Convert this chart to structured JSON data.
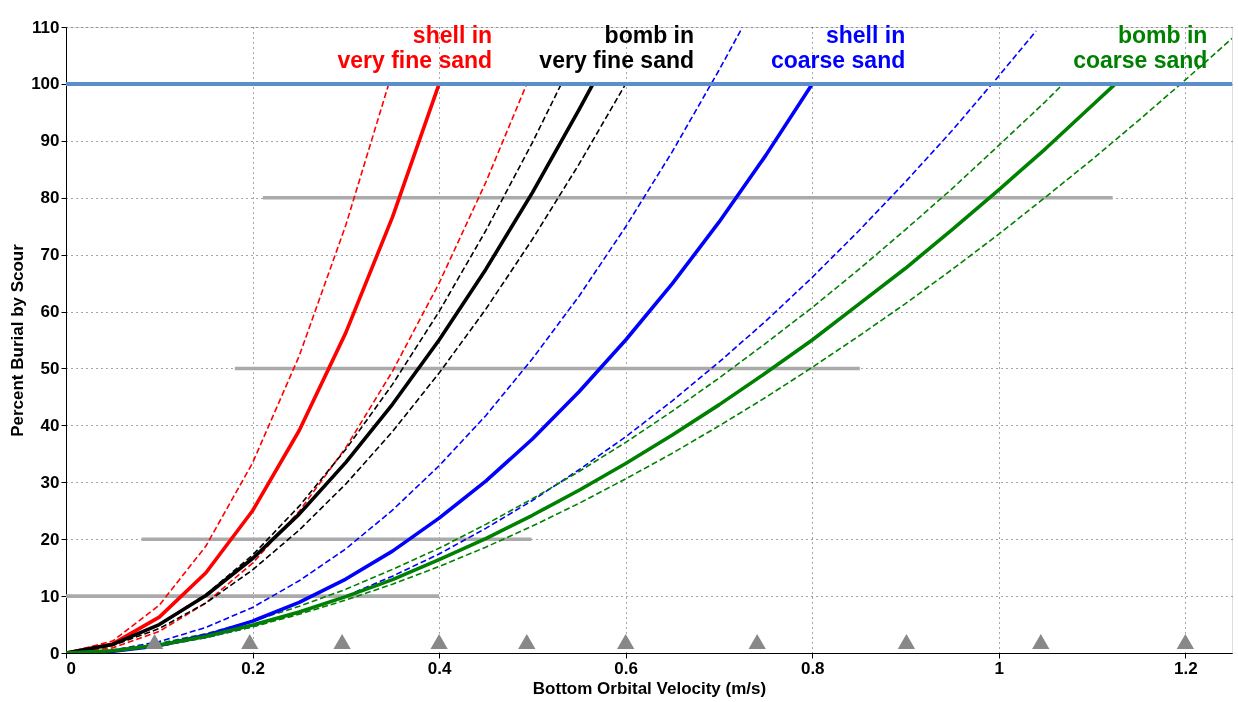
{
  "chart_data": {
    "type": "line",
    "xlabel": "Bottom Orbital Velocity (m/s)",
    "ylabel": "Percent Burial by Scour",
    "xlim": [
      0,
      1.25
    ],
    "ylim": [
      0,
      110
    ],
    "xticks": [
      0,
      0.2,
      0.4,
      0.6,
      0.8,
      1,
      1.2
    ],
    "yticks": [
      0,
      10,
      20,
      30,
      40,
      50,
      60,
      70,
      80,
      90,
      100,
      110
    ],
    "grid": true,
    "legend": false,
    "ref_lines": [
      {
        "axis": "y",
        "value": 100,
        "color": "#5b8fc9"
      }
    ],
    "series": [
      {
        "type": "line",
        "color": "#aaaaaa",
        "line_style": "solid",
        "x": [
          0,
          0.4
        ],
        "values": [
          10,
          10
        ]
      },
      {
        "type": "line",
        "color": "#aaaaaa",
        "line_style": "solid",
        "x": [
          0.081,
          0.499
        ],
        "values": [
          20,
          20
        ]
      },
      {
        "type": "line",
        "color": "#aaaaaa",
        "line_style": "solid",
        "x": [
          0.181,
          0.851
        ],
        "values": [
          50,
          50
        ]
      },
      {
        "type": "line",
        "color": "#aaaaaa",
        "line_style": "solid",
        "x": [
          0.211,
          1.122
        ],
        "values": [
          80,
          80
        ]
      },
      {
        "type": "line",
        "color": "#ff0000",
        "line_style": "dashed",
        "x": [
          0,
          0.05,
          0.1,
          0.15,
          0.2,
          0.25,
          0.3,
          0.346
        ],
        "values": [
          0,
          2.1,
          8.4,
          18.8,
          33.4,
          52.2,
          75.2,
          100
        ]
      },
      {
        "type": "line",
        "color": "#ff0000",
        "line_style": "dashed",
        "x": [
          0,
          0.05,
          0.1,
          0.15,
          0.2,
          0.25,
          0.3,
          0.35,
          0.4,
          0.45,
          0.494
        ],
        "values": [
          0,
          0.9,
          3.8,
          8.8,
          15.8,
          24.9,
          36.1,
          49.5,
          65,
          82.7,
          100
        ]
      },
      {
        "type": "line",
        "color": "#000000",
        "line_style": "dashed",
        "x": [
          0,
          0.05,
          0.1,
          0.15,
          0.2,
          0.25,
          0.3,
          0.35,
          0.4,
          0.45,
          0.5,
          0.531
        ],
        "values": [
          0,
          1.4,
          5,
          10.3,
          17.2,
          25.8,
          35.8,
          47.2,
          60,
          74.2,
          89.7,
          100
        ]
      },
      {
        "type": "line",
        "color": "#000000",
        "line_style": "dashed",
        "x": [
          0,
          0.05,
          0.1,
          0.15,
          0.2,
          0.25,
          0.3,
          0.35,
          0.4,
          0.45,
          0.5,
          0.55,
          0.6
        ],
        "values": [
          0,
          1.3,
          4.3,
          8.8,
          14.6,
          21.6,
          29.7,
          38.9,
          49.2,
          60.4,
          72.7,
          85.9,
          100
        ]
      },
      {
        "type": "line",
        "color": "#0000ff",
        "line_style": "dashed",
        "x": [
          0,
          0.05,
          0.1,
          0.15,
          0.2,
          0.25,
          0.3,
          0.35,
          0.4,
          0.45,
          0.5,
          0.55,
          0.6,
          0.65,
          0.7,
          0.725
        ],
        "values": [
          0,
          0.5,
          2,
          4.5,
          8,
          12.7,
          18.3,
          25.1,
          32.9,
          41.7,
          51.7,
          62.7,
          74.9,
          88.1,
          102.4,
          109.9
        ]
      },
      {
        "type": "line",
        "color": "#0000ff",
        "line_style": "dashed",
        "x": [
          0,
          0.05,
          0.1,
          0.15,
          0.2,
          0.25,
          0.3,
          0.35,
          0.4,
          0.45,
          0.5,
          0.55,
          0.6,
          0.65,
          0.7,
          0.75,
          0.8,
          0.85,
          0.9,
          0.95,
          1.0,
          1.04
        ],
        "values": [
          0,
          0.3,
          1.2,
          2.7,
          4.6,
          7.1,
          10,
          13.5,
          17.4,
          21.9,
          26.8,
          32.2,
          38,
          44.3,
          51.1,
          58.3,
          66,
          74.2,
          82.8,
          91.8,
          101.4,
          109.3
        ]
      },
      {
        "type": "line",
        "color": "#008000",
        "line_style": "dashed",
        "x": [
          0,
          0.05,
          0.1,
          0.15,
          0.2,
          0.25,
          0.3,
          0.35,
          0.4,
          0.45,
          0.5,
          0.55,
          0.6,
          0.65,
          0.7,
          0.75,
          0.8,
          0.85,
          0.9,
          0.95,
          1.0,
          1.05,
          1.069
        ],
        "values": [
          0,
          0.5,
          1.7,
          3.4,
          5.6,
          8.2,
          11.2,
          14.7,
          18.4,
          22.6,
          27.1,
          31.9,
          37,
          42.5,
          48.3,
          54.4,
          60.7,
          67.4,
          74.4,
          81.6,
          89.2,
          96.9,
          100
        ]
      },
      {
        "type": "line",
        "color": "#008000",
        "line_style": "dashed",
        "x": [
          0,
          0.05,
          0.1,
          0.15,
          0.2,
          0.25,
          0.3,
          0.35,
          0.4,
          0.45,
          0.5,
          0.55,
          0.6,
          0.65,
          0.7,
          0.75,
          0.8,
          0.85,
          0.9,
          0.95,
          1.0,
          1.05,
          1.1,
          1.15,
          1.2,
          1.25
        ],
        "values": [
          0,
          0.4,
          1.4,
          2.8,
          4.6,
          6.8,
          9.3,
          12.1,
          15.2,
          18.6,
          22.3,
          26.3,
          30.6,
          35.1,
          39.9,
          44.9,
          50.2,
          55.7,
          61.4,
          67.4,
          73.6,
          80.1,
          86.7,
          93.6,
          100.7,
          108
        ]
      },
      {
        "type": "line",
        "name": "shell in\nvery fine sand",
        "color": "#ff0000",
        "line_style": "solid",
        "x": [
          0,
          0.05,
          0.1,
          0.15,
          0.2,
          0.25,
          0.3,
          0.35,
          0.4
        ],
        "values": [
          0,
          1.6,
          6.3,
          14.1,
          25,
          39.1,
          56.3,
          76.6,
          100
        ]
      },
      {
        "type": "line",
        "name": "bomb in\nvery fine sand",
        "color": "#000000",
        "line_style": "solid",
        "x": [
          0,
          0.05,
          0.1,
          0.15,
          0.2,
          0.25,
          0.3,
          0.35,
          0.4,
          0.45,
          0.5,
          0.55,
          0.565
        ],
        "values": [
          0,
          1.5,
          5,
          10.1,
          16.6,
          24.4,
          33.5,
          43.7,
          55,
          67.4,
          80.9,
          95.5,
          100
        ]
      },
      {
        "type": "line",
        "name": "shell in\ncoarse sand",
        "color": "#0000ff",
        "line_style": "solid",
        "x": [
          0,
          0.05,
          0.1,
          0.15,
          0.2,
          0.25,
          0.3,
          0.35,
          0.4,
          0.45,
          0.5,
          0.55,
          0.6,
          0.65,
          0.7,
          0.75,
          0.8
        ],
        "values": [
          0,
          0.3,
          1.3,
          3.1,
          5.6,
          8.9,
          13,
          17.9,
          23.7,
          30.2,
          37.6,
          45.9,
          55,
          64.9,
          75.7,
          87.4,
          100
        ]
      },
      {
        "type": "line",
        "name": "bomb in\ncoarse sand",
        "color": "#008000",
        "line_style": "solid",
        "x": [
          0,
          0.05,
          0.1,
          0.15,
          0.2,
          0.25,
          0.3,
          0.35,
          0.4,
          0.45,
          0.5,
          0.55,
          0.6,
          0.65,
          0.7,
          0.75,
          0.8,
          0.85,
          0.9,
          0.95,
          1.0,
          1.05,
          1.1,
          1.125
        ],
        "values": [
          0,
          0.4,
          1.4,
          2.9,
          4.9,
          7.2,
          9.9,
          12.9,
          16.4,
          20.1,
          24.2,
          28.6,
          33.3,
          38.3,
          43.6,
          49.2,
          55,
          61.3,
          67.6,
          74.4,
          81.4,
          88.6,
          96.2,
          100
        ]
      },
      {
        "type": "scatter",
        "marker": "triangle",
        "color": "#888888",
        "x": [
          0.095,
          0.197,
          0.296,
          0.4,
          0.494,
          0.6,
          0.741,
          0.901,
          1.045,
          1.2
        ],
        "values": [
          2,
          2,
          2,
          2,
          2,
          2,
          2,
          2,
          2,
          2
        ]
      }
    ]
  }
}
